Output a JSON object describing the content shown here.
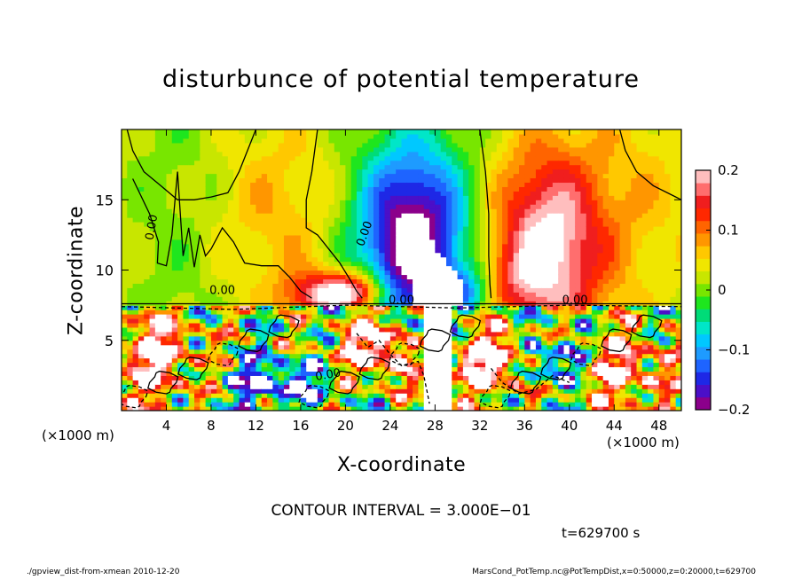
{
  "chart_data": {
    "type": "heatmap",
    "title": "disturbunce of potential temperature",
    "xlabel": "X-coordinate",
    "ylabel": "Z-coordinate",
    "x_unit_label": "(×1000 m)",
    "x_ticks": [
      4,
      8,
      12,
      16,
      20,
      24,
      28,
      32,
      36,
      40,
      44,
      48
    ],
    "y_ticks": [
      5,
      10,
      15
    ],
    "xlim": [
      0,
      50
    ],
    "ylim": [
      0,
      20
    ],
    "colorbar": {
      "ticks": [
        "0.2",
        "0.1",
        "0",
        "−0.1",
        "−0.2"
      ],
      "tick_values": [
        0.2,
        0.1,
        0,
        -0.1,
        -0.2
      ],
      "range": [
        -0.2,
        0.2
      ],
      "colors": [
        "#8b008b",
        "#4b0fc8",
        "#1e28e6",
        "#1e64ff",
        "#1e9bff",
        "#00c8ff",
        "#00e6c8",
        "#00dc78",
        "#1ee61e",
        "#78e600",
        "#c8e600",
        "#f0e600",
        "#ffc800",
        "#ff9600",
        "#ff6400",
        "#ff2800",
        "#f01e1e",
        "#ff6e6e",
        "#ffbebe"
      ]
    },
    "contour_labels": [
      "0.00",
      "0.00",
      "0.00",
      "0.00",
      "0.00",
      "0.00"
    ]
  },
  "annotations": {
    "contour_interval": "CONTOUR INTERVAL = 3.000E−01",
    "time": "t=629700 s"
  },
  "footer": {
    "left": "./gpview_dist-from-xmean  2010-12-20",
    "right": "MarsCond_PotTemp.nc@PotTempDist,x=0:50000,z=0:20000,t=629700"
  }
}
